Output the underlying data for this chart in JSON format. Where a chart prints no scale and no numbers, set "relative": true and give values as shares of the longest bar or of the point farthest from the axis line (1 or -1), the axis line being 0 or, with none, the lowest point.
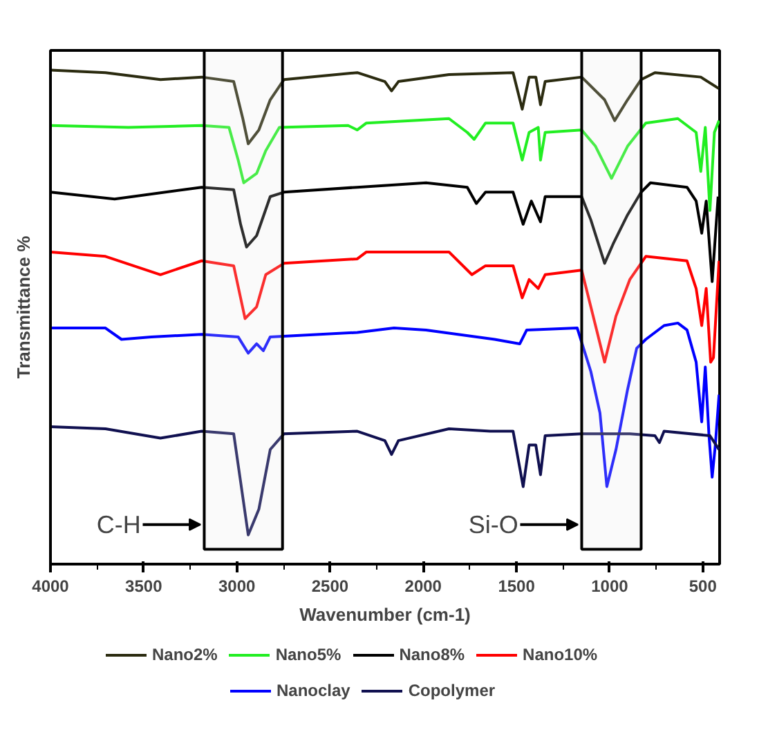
{
  "chart_data": {
    "type": "line",
    "relative": true,
    "xlabel": "Wavenumber (cm-1)",
    "ylabel": "Transmittance %",
    "xlim": [
      4000,
      410
    ],
    "xticks": [
      4000,
      3500,
      3000,
      2500,
      2000,
      1500,
      1000,
      500
    ],
    "grid": false,
    "legend": "bottom",
    "line_style": "solid",
    "marker": "none",
    "bands": [
      {
        "axis": "x",
        "from": 3175,
        "to": 2755,
        "label": "C-H",
        "color": "#e8e8e8"
      },
      {
        "axis": "x",
        "from": 1150,
        "to": 831,
        "label": "Si-O",
        "color": "#e8e8e8"
      }
    ],
    "series": [
      {
        "name": "Nano2%",
        "color": "#2b2b10",
        "x": [
          4000,
          3705,
          3410,
          3189,
          3017,
          2968,
          2939,
          2882,
          2821,
          2747,
          2354,
          2206,
          2170,
          2133,
          1862,
          1518,
          1469,
          1432,
          1396,
          1371,
          1346,
          1150,
          1027,
          973,
          904,
          831,
          757,
          511,
          415
        ],
        "values": [
          1.0,
          0.995,
          0.981,
          0.986,
          0.977,
          0.902,
          0.851,
          0.879,
          0.94,
          0.981,
          0.995,
          0.977,
          0.958,
          0.977,
          0.991,
          0.995,
          0.921,
          0.986,
          0.986,
          0.93,
          0.977,
          0.986,
          0.94,
          0.898,
          0.94,
          0.981,
          0.995,
          0.986,
          0.963
        ]
      },
      {
        "name": "Nano5%",
        "color": "#22ee22",
        "x": [
          4000,
          3582,
          3189,
          3042,
          2993,
          2963,
          2894,
          2845,
          2772,
          2403,
          2354,
          2305,
          1862,
          1764,
          1727,
          1666,
          1518,
          1469,
          1432,
          1383,
          1371,
          1346,
          1150,
          1076,
          990,
          904,
          806,
          634,
          536,
          511,
          487,
          462,
          438,
          413
        ],
        "values": [
          0.888,
          0.884,
          0.888,
          0.884,
          0.818,
          0.772,
          0.791,
          0.837,
          0.884,
          0.888,
          0.879,
          0.893,
          0.902,
          0.874,
          0.86,
          0.893,
          0.893,
          0.818,
          0.874,
          0.884,
          0.818,
          0.874,
          0.879,
          0.846,
          0.781,
          0.846,
          0.893,
          0.902,
          0.874,
          0.795,
          0.884,
          0.716,
          0.874,
          0.898
        ]
      },
      {
        "name": "Nano8%",
        "color": "#000000",
        "x": [
          4000,
          3656,
          3189,
          3017,
          2980,
          2948,
          2894,
          2821,
          2747,
          2354,
          1985,
          1764,
          1715,
          1666,
          1518,
          1464,
          1420,
          1371,
          1346,
          1150,
          1101,
          1027,
          978,
          904,
          831,
          781,
          585,
          536,
          506,
          482,
          450,
          418
        ],
        "values": [
          0.753,
          0.739,
          0.763,
          0.758,
          0.688,
          0.642,
          0.665,
          0.744,
          0.753,
          0.763,
          0.772,
          0.763,
          0.73,
          0.753,
          0.753,
          0.688,
          0.735,
          0.693,
          0.744,
          0.744,
          0.697,
          0.609,
          0.651,
          0.707,
          0.753,
          0.772,
          0.763,
          0.735,
          0.67,
          0.735,
          0.572,
          0.744
        ]
      },
      {
        "name": "Nano10%",
        "color": "#ff0000",
        "x": [
          4000,
          3705,
          3410,
          3189,
          3017,
          2980,
          2956,
          2894,
          2845,
          2747,
          2354,
          2305,
          1862,
          1739,
          1666,
          1518,
          1469,
          1432,
          1383,
          1346,
          1150,
          1101,
          1027,
          966,
          892,
          806,
          585,
          536,
          506,
          482,
          458,
          443,
          413
        ],
        "values": [
          0.632,
          0.623,
          0.586,
          0.614,
          0.604,
          0.539,
          0.497,
          0.521,
          0.586,
          0.609,
          0.618,
          0.632,
          0.632,
          0.586,
          0.604,
          0.604,
          0.539,
          0.576,
          0.558,
          0.586,
          0.595,
          0.521,
          0.409,
          0.502,
          0.576,
          0.623,
          0.614,
          0.558,
          0.483,
          0.558,
          0.409,
          0.418,
          0.614
        ]
      },
      {
        "name": "Nanoclay",
        "color": "#0000ff",
        "x": [
          4000,
          3705,
          3619,
          3459,
          3189,
          2993,
          2939,
          2894,
          2858,
          2821,
          2354,
          2157,
          1985,
          1617,
          1482,
          1445,
          1174,
          1101,
          1052,
          1015,
          966,
          904,
          855,
          806,
          708,
          634,
          585,
          536,
          506,
          487,
          467,
          450,
          433,
          413
        ],
        "values": [
          0.478,
          0.478,
          0.455,
          0.46,
          0.465,
          0.46,
          0.427,
          0.446,
          0.432,
          0.46,
          0.469,
          0.478,
          0.474,
          0.455,
          0.446,
          0.474,
          0.478,
          0.39,
          0.306,
          0.157,
          0.232,
          0.353,
          0.437,
          0.455,
          0.483,
          0.488,
          0.474,
          0.409,
          0.288,
          0.399,
          0.26,
          0.176,
          0.241,
          0.343
        ]
      },
      {
        "name": "Copolymer",
        "color": "#101050",
        "x": [
          4000,
          3705,
          3410,
          3189,
          3017,
          2980,
          2939,
          2882,
          2821,
          2747,
          2354,
          2206,
          2170,
          2133,
          1862,
          1641,
          1518,
          1464,
          1432,
          1396,
          1371,
          1346,
          1150,
          892,
          757,
          733,
          708,
          462,
          413
        ],
        "values": [
          0.278,
          0.274,
          0.255,
          0.269,
          0.264,
          0.167,
          0.059,
          0.111,
          0.232,
          0.264,
          0.269,
          0.25,
          0.222,
          0.25,
          0.274,
          0.269,
          0.269,
          0.157,
          0.241,
          0.241,
          0.181,
          0.26,
          0.264,
          0.264,
          0.26,
          0.246,
          0.269,
          0.26,
          0.232
        ]
      }
    ]
  }
}
